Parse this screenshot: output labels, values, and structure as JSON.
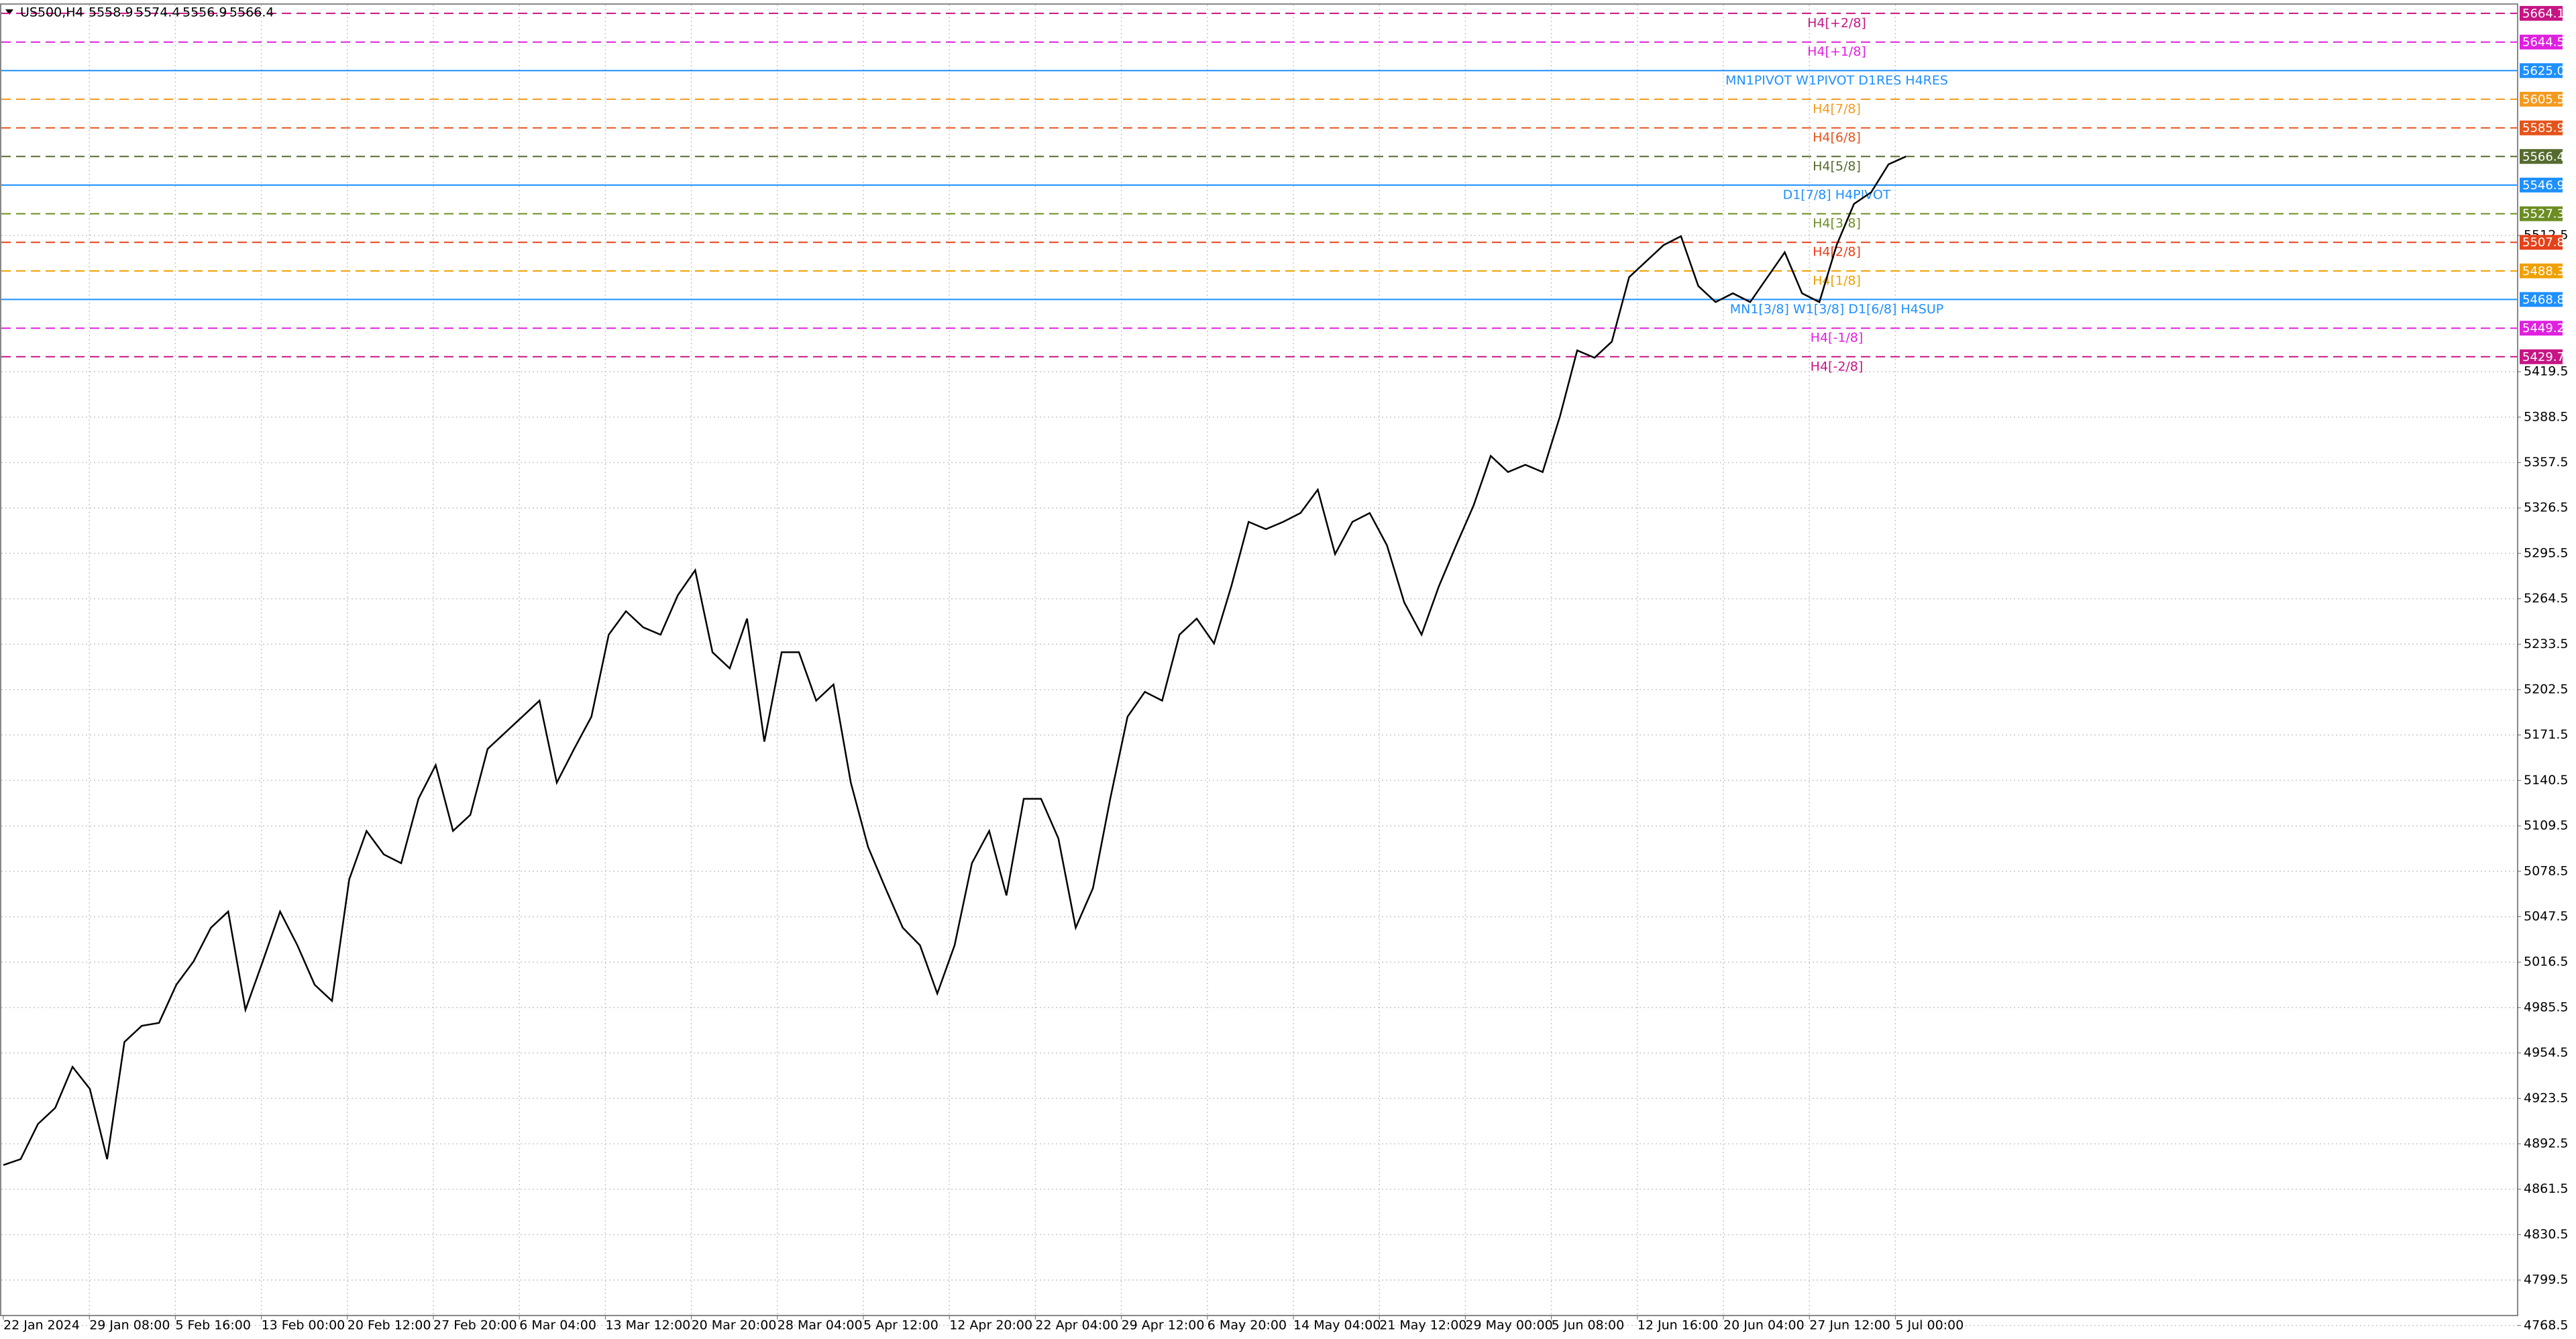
{
  "chart_data": {
    "type": "line",
    "symbol": "US500,H4",
    "ohlc": [
      5558.9,
      5574.4,
      5556.9,
      5566.4
    ],
    "x_labels": [
      "22 Jan 2024",
      "29 Jan 08:00",
      "5 Feb 16:00",
      "13 Feb 00:00",
      "20 Feb 12:00",
      "27 Feb 20:00",
      "6 Mar 04:00",
      "13 Mar 12:00",
      "20 Mar 20:00",
      "28 Mar 04:00",
      "5 Apr 12:00",
      "12 Apr 20:00",
      "22 Apr 04:00",
      "29 Apr 12:00",
      "6 May 20:00",
      "14 May 04:00",
      "21 May 12:00",
      "29 May 00:00",
      "5 Jun 08:00",
      "12 Jun 16:00",
      "20 Jun 04:00",
      "27 Jun 12:00",
      "5 Jul 00:00"
    ],
    "values": [
      4878,
      4882,
      4906,
      4917,
      4945,
      4930,
      4882,
      4962,
      4973,
      4975,
      5001,
      5017,
      5040,
      5051,
      4984,
      5017,
      5051,
      5028,
      5001,
      4990,
      5073,
      5106,
      5090,
      5084,
      5128,
      5151,
      5106,
      5117,
      5162,
      5173,
      5184,
      5195,
      5139,
      5162,
      5184,
      5240,
      5256,
      5245,
      5240,
      5267,
      5284,
      5228,
      5217,
      5251,
      5167,
      5228,
      5228,
      5195,
      5206,
      5139,
      5095,
      5067,
      5040,
      5028,
      4995,
      5028,
      5084,
      5106,
      5062,
      5128,
      5128,
      5101,
      5040,
      5067,
      5128,
      5184,
      5201,
      5195,
      5240,
      5251,
      5234,
      5273,
      5317,
      5312,
      5317,
      5323,
      5339,
      5295,
      5317,
      5323,
      5301,
      5262,
      5240,
      5273,
      5301,
      5328,
      5362,
      5351,
      5356,
      5351,
      5389,
      5434,
      5429,
      5440,
      5484,
      5495,
      5506,
      5512,
      5478,
      5467,
      5473,
      5467,
      5484,
      5501,
      5473,
      5467,
      5506,
      5534,
      5542,
      5561,
      5566.4
    ],
    "color": "#000000",
    "ylim": [
      4762,
      5670
    ],
    "yticks": [
      4768.5,
      4799.5,
      4830.5,
      4861.5,
      4892.5,
      4923.5,
      4954.5,
      4985.5,
      5016.5,
      5047.5,
      5078.5,
      5109.5,
      5140.5,
      5171.5,
      5202.5,
      5233.5,
      5264.5,
      5295.5,
      5326.5,
      5357.5,
      5388.5,
      5419.5,
      5512.5
    ],
    "grid": true,
    "levels": [
      {
        "label": "H4[+2/8]",
        "value": 5664.1,
        "color": "#c71585",
        "style": "dashed"
      },
      {
        "label": "H4[+1/8]",
        "value": 5644.5,
        "color": "#e020e0",
        "style": "dashed"
      },
      {
        "label": "MN1PIVOT W1PIVOT D1RES H4RES",
        "value": 5625,
        "price_label": "5625.0",
        "color": "#1e90ff",
        "style": "solid"
      },
      {
        "label": "H4[7/8]",
        "value": 5605.5,
        "color": "#f39a1e",
        "style": "dashed"
      },
      {
        "label": "H4[6/8]",
        "value": 5585.9,
        "color": "#e5531a",
        "style": "dashed"
      },
      {
        "label": "H4[5/8]",
        "value": 5566.4,
        "color": "#556b2f",
        "style": "dashed"
      },
      {
        "label": "D1[7/8] H4PIVOT",
        "value": 5546.9,
        "color": "#1e90ff",
        "style": "solid"
      },
      {
        "label": "H4[3/8]",
        "value": 5527.3,
        "color": "#6b8e23",
        "style": "dashed"
      },
      {
        "label": "H4[2/8]",
        "value": 5507.8,
        "color": "#e5411a",
        "style": "dashed"
      },
      {
        "label": "H4[1/8]",
        "value": 5488.3,
        "color": "#f0a000",
        "style": "dashed"
      },
      {
        "label": "MN1[3/8] W1[3/8] D1[6/8] H4SUP",
        "value": 5468.8,
        "color": "#1e90ff",
        "style": "solid"
      },
      {
        "label": "H4[-1/8]",
        "value": 5449.2,
        "color": "#e020e0",
        "style": "dashed"
      },
      {
        "label": "H4[-2/8]",
        "value": 5429.7,
        "color": "#c71585",
        "style": "dashed"
      }
    ]
  }
}
